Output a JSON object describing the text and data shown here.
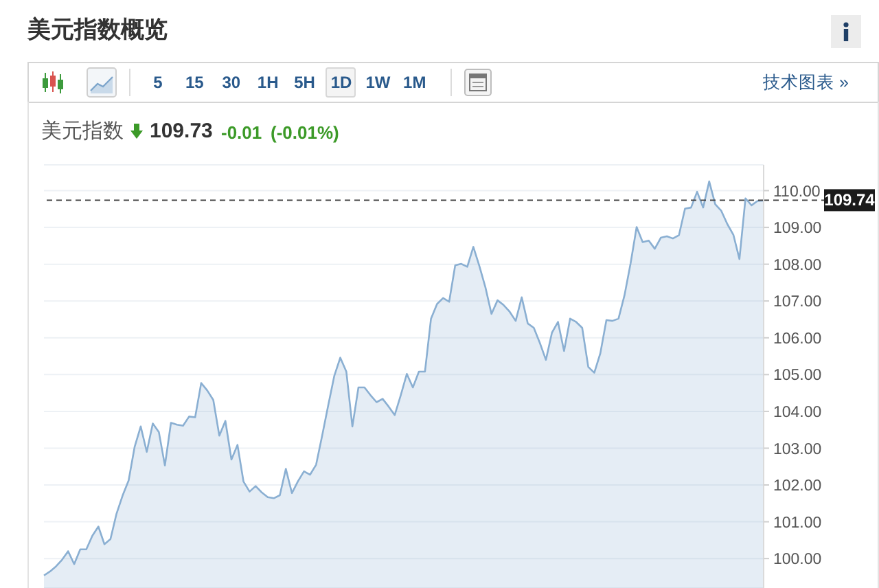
{
  "chart_data": {
    "type": "area",
    "title": "美元指数概览",
    "subtitle": "美元指数",
    "annotations": [
      "109.73",
      "-0.01",
      "(-0.01%)",
      "5",
      "15",
      "30",
      "1H",
      "5H",
      "1D",
      "1W",
      "1M",
      "技术图表 »"
    ],
    "categories": [
      null,
      null,
      null,
      null,
      null,
      null,
      null,
      null,
      null,
      null,
      null,
      null,
      null,
      null,
      null,
      null,
      null,
      null,
      null,
      null,
      null,
      null,
      null,
      null,
      null,
      null,
      null,
      null,
      null,
      null,
      null,
      null,
      null,
      null,
      null,
      null,
      null,
      null,
      null,
      null,
      null,
      null,
      null,
      null,
      null,
      null,
      null,
      null,
      null,
      null,
      null,
      null,
      null,
      null,
      null,
      null,
      null,
      null,
      null,
      null,
      null,
      null,
      null,
      null,
      null,
      null,
      null,
      null,
      null,
      null,
      null,
      null,
      null,
      null,
      null,
      null,
      null,
      null,
      null,
      null,
      null,
      null,
      null,
      null,
      null,
      null,
      null,
      null,
      null,
      null,
      null,
      null,
      null,
      null,
      null,
      null,
      null,
      null,
      null,
      null,
      null,
      null,
      null,
      null,
      null,
      null,
      null,
      null,
      null,
      null,
      null,
      null,
      null,
      null,
      null,
      null,
      null,
      null,
      null,
      null
    ],
    "values": [
      99.54,
      99.65,
      99.79,
      99.97,
      100.2,
      99.85,
      100.25,
      100.25,
      100.62,
      100.87,
      100.39,
      100.53,
      101.22,
      101.71,
      102.12,
      103.04,
      103.59,
      102.9,
      103.67,
      103.44,
      102.53,
      103.69,
      103.64,
      103.61,
      103.86,
      103.84,
      104.77,
      104.57,
      104.31,
      103.34,
      103.74,
      102.69,
      103.09,
      102.09,
      101.82,
      101.97,
      101.8,
      101.67,
      101.64,
      101.72,
      102.44,
      101.78,
      102.1,
      102.37,
      102.28,
      102.55,
      103.34,
      104.16,
      104.96,
      105.46,
      105.08,
      103.59,
      104.65,
      104.65,
      104.44,
      104.25,
      104.34,
      104.13,
      103.9,
      104.44,
      105.02,
      104.65,
      105.08,
      105.08,
      106.52,
      106.92,
      107.08,
      106.98,
      107.97,
      108.01,
      107.93,
      108.47,
      107.95,
      107.37,
      106.65,
      107.02,
      106.89,
      106.71,
      106.46,
      107.1,
      106.39,
      106.27,
      105.86,
      105.4,
      106.14,
      106.43,
      105.64,
      106.52,
      106.43,
      106.27,
      105.21,
      105.05,
      105.58,
      106.48,
      106.46,
      106.52,
      107.16,
      108.02,
      109.01,
      108.6,
      108.64,
      108.42,
      108.72,
      108.76,
      108.7,
      108.79,
      109.51,
      109.54,
      109.97,
      109.54,
      110.25,
      109.63,
      109.45,
      109.09,
      108.8,
      108.14,
      109.79,
      109.6,
      109.72,
      109.73
    ],
    "color": "#8aafd2",
    "ylim": [
      99.2,
      110.7
    ],
    "yticks": [
      {
        "value": 100,
        "label": "100.00"
      },
      {
        "value": 101,
        "label": "101.00"
      },
      {
        "value": 102,
        "label": "102.00"
      },
      {
        "value": 103,
        "label": "103.00"
      },
      {
        "value": 104,
        "label": "104.00"
      },
      {
        "value": 105,
        "label": "105.00"
      },
      {
        "value": 106,
        "label": "106.00"
      },
      {
        "value": 107,
        "label": "107.00"
      },
      {
        "value": 108,
        "label": "108.00"
      },
      {
        "value": 109,
        "label": "109.00"
      },
      {
        "value": 110,
        "label": "110.00"
      }
    ],
    "ref_lines": [
      {
        "axis": "y",
        "value": 109.74,
        "label": "109.74",
        "color": "#444444",
        "line_style": "dashed"
      }
    ],
    "grid": "y",
    "tick_labels": "y"
  }
}
